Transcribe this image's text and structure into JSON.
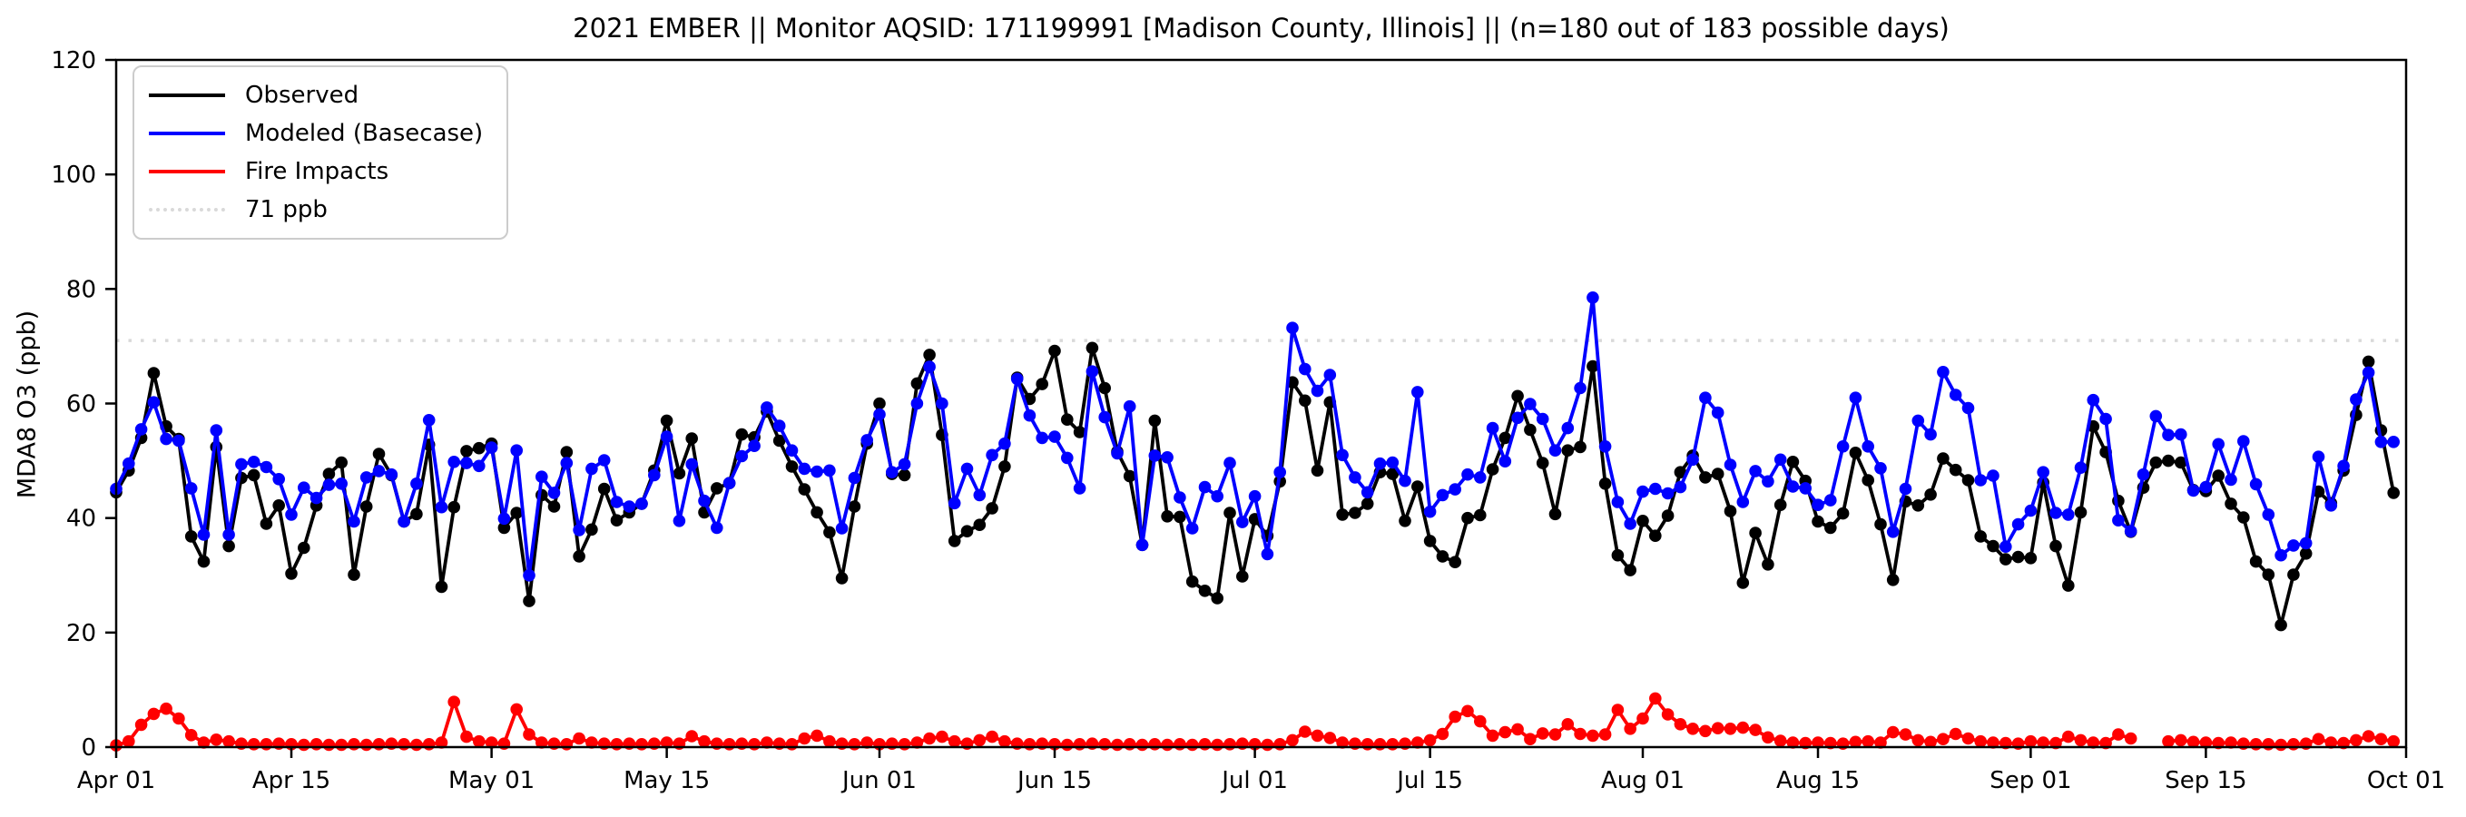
{
  "chart_data": {
    "type": "line",
    "title": "2021 EMBER || Monitor AQSID: 171199991 [Madison County, Illinois] || (n=180 out of 183 possible days)",
    "xlabel": "",
    "ylabel": "MDA8 O3 (ppb)",
    "ylim": [
      0,
      120
    ],
    "yticks": [
      0,
      20,
      40,
      60,
      80,
      100,
      120
    ],
    "n_days": 183,
    "x_start": "Apr 01",
    "x_end": "Oct 01",
    "xtick_labels": [
      "Apr 01",
      "Apr 15",
      "May 01",
      "May 15",
      "Jun 01",
      "Jun 15",
      "Jul 01",
      "Jul 15",
      "Aug 01",
      "Aug 15",
      "Sep 01",
      "Sep 15",
      "Oct 01"
    ],
    "xtick_day_index": [
      0,
      14,
      30,
      44,
      61,
      75,
      91,
      105,
      122,
      136,
      153,
      167,
      183
    ],
    "grid": false,
    "legend_position": "upper-left",
    "background_color": "#ffffff",
    "spine_color": "#000000",
    "reference_line": {
      "label": "71 ppb",
      "value": 71,
      "color": "#d9d9d9",
      "style": "dotted"
    },
    "series": [
      {
        "name": "Observed",
        "color": "#000000",
        "marker": "circle",
        "values": [
          44.5,
          48.3,
          54.0,
          65.3,
          56.0,
          53.8,
          36.8,
          32.4,
          52.4,
          35.1,
          47.0,
          47.5,
          39.0,
          42.2,
          30.3,
          34.8,
          42.2,
          47.7,
          49.7,
          30.1,
          42.0,
          51.2,
          47.5,
          39.4,
          40.7,
          52.8,
          28.0,
          41.9,
          51.7,
          52.2,
          53.0,
          38.3,
          40.9,
          25.5,
          44.0,
          42.0,
          51.5,
          33.3,
          38.0,
          45.1,
          39.6,
          41.0,
          42.5,
          48.3,
          57.0,
          47.8,
          53.9,
          41.0,
          45.2,
          46.1,
          54.6,
          54.1,
          58.6,
          53.5,
          49.0,
          45.0,
          41.0,
          37.5,
          29.5,
          42.0,
          53.0,
          60.0,
          47.7,
          47.5,
          63.5,
          68.5,
          54.5,
          36.0,
          37.7,
          38.8,
          41.7,
          49.0,
          64.5,
          60.8,
          63.4,
          69.2,
          57.2,
          55.0,
          69.7,
          62.7,
          51.6,
          47.3,
          35.3,
          57.0,
          40.3,
          40.2,
          28.9,
          27.3,
          26.0,
          40.9,
          29.8,
          39.8,
          36.9,
          46.4,
          63.7,
          60.5,
          48.3,
          60.2,
          40.6,
          40.9,
          42.5,
          48.0,
          47.7,
          39.5,
          45.5,
          36.0,
          33.3,
          32.3,
          40.0,
          40.5,
          48.5,
          54.0,
          61.3,
          55.4,
          49.6,
          40.7,
          51.8,
          52.4,
          66.5,
          46.0,
          33.5,
          30.9,
          39.5,
          36.9,
          40.4,
          48.0,
          50.9,
          47.1,
          47.7,
          41.2,
          28.7,
          37.4,
          31.9,
          42.3,
          49.8,
          46.5,
          39.4,
          38.3,
          40.8,
          51.4,
          46.6,
          38.9,
          29.2,
          42.9,
          42.2,
          44.1,
          50.4,
          48.4,
          46.6,
          36.8,
          35.1,
          32.8,
          33.2,
          33.0,
          46.2,
          35.1,
          28.2,
          41.0,
          56.0,
          51.5,
          43.0,
          37.6,
          45.3,
          49.7,
          50.0,
          49.7,
          44.9,
          44.7,
          47.4,
          42.5,
          40.1,
          32.4,
          30.1,
          21.3,
          30.1,
          33.8,
          44.6,
          42.6,
          48.3,
          58.0,
          67.3,
          55.3,
          44.4
        ]
      },
      {
        "name": "Modeled (Basecase)",
        "color": "#0000ff",
        "marker": "circle",
        "values": [
          45.1,
          49.5,
          55.5,
          60.2,
          53.8,
          53.5,
          45.2,
          37.1,
          55.3,
          37.1,
          49.4,
          49.8,
          48.9,
          46.8,
          40.6,
          45.3,
          43.5,
          45.8,
          46.0,
          39.4,
          47.1,
          48.2,
          47.6,
          39.4,
          46.0,
          57.1,
          41.9,
          49.8,
          49.6,
          49.1,
          52.3,
          39.9,
          51.8,
          30.0,
          47.2,
          44.4,
          49.6,
          37.9,
          48.6,
          50.1,
          42.8,
          42.0,
          42.5,
          47.5,
          54.2,
          39.5,
          49.4,
          43.0,
          38.3,
          46.1,
          50.8,
          52.6,
          59.3,
          56.1,
          51.8,
          48.6,
          48.1,
          48.3,
          38.2,
          47.0,
          53.6,
          58.1,
          48.0,
          49.4,
          60.0,
          66.4,
          60.0,
          42.6,
          48.6,
          44.0,
          51.0,
          53.0,
          64.3,
          57.9,
          54.0,
          54.2,
          50.5,
          45.2,
          65.6,
          57.6,
          51.3,
          59.5,
          35.3,
          50.9,
          50.6,
          43.6,
          38.2,
          45.4,
          43.8,
          49.6,
          39.3,
          43.8,
          33.7,
          48.0,
          73.2,
          66.0,
          62.2,
          65.0,
          51.0,
          47.1,
          44.5,
          49.5,
          49.7,
          46.5,
          62.0,
          41.1,
          44.0,
          45.0,
          47.6,
          47.1,
          55.7,
          49.9,
          57.5,
          59.9,
          57.3,
          51.8,
          55.7,
          62.7,
          78.5,
          52.5,
          42.8,
          39.0,
          44.6,
          45.1,
          44.3,
          45.4,
          50.2,
          61.0,
          58.4,
          49.3,
          42.8,
          48.2,
          46.4,
          50.2,
          45.5,
          45.2,
          42.3,
          43.1,
          52.5,
          61.0,
          52.5,
          48.7,
          37.6,
          45.1,
          57.0,
          54.6,
          65.5,
          61.5,
          59.2,
          46.6,
          47.4,
          35.0,
          38.9,
          41.3,
          48.0,
          40.9,
          40.6,
          48.8,
          60.6,
          57.3,
          39.6,
          37.7,
          47.6,
          57.8,
          54.5,
          54.6,
          44.8,
          45.4,
          52.9,
          46.7,
          53.4,
          45.9,
          40.6,
          33.5,
          35.2,
          35.6,
          50.7,
          42.2,
          49.1,
          60.7,
          65.4,
          53.3,
          53.3
        ]
      },
      {
        "name": "Fire Impacts",
        "color": "#ff0000",
        "marker": "circle",
        "values": [
          0.3,
          1.0,
          3.9,
          5.8,
          6.7,
          5.0,
          2.1,
          0.8,
          1.3,
          1.0,
          0.6,
          0.5,
          0.5,
          0.6,
          0.5,
          0.4,
          0.5,
          0.4,
          0.4,
          0.5,
          0.4,
          0.5,
          0.6,
          0.5,
          0.4,
          0.5,
          0.8,
          7.9,
          1.8,
          1.0,
          0.8,
          0.6,
          6.6,
          2.2,
          0.8,
          0.6,
          0.5,
          1.5,
          0.8,
          0.6,
          0.5,
          0.6,
          0.5,
          0.6,
          0.8,
          0.6,
          1.9,
          1.0,
          0.6,
          0.5,
          0.6,
          0.5,
          0.8,
          0.6,
          0.5,
          1.5,
          2.0,
          1.0,
          0.6,
          0.5,
          0.8,
          0.5,
          0.6,
          0.5,
          0.8,
          1.5,
          1.8,
          1.0,
          0.6,
          1.2,
          1.8,
          1.0,
          0.6,
          0.5,
          0.6,
          0.5,
          0.4,
          0.5,
          0.6,
          0.5,
          0.4,
          0.5,
          0.4,
          0.5,
          0.4,
          0.5,
          0.4,
          0.5,
          0.4,
          0.5,
          0.6,
          0.5,
          0.4,
          0.5,
          1.2,
          2.7,
          2.0,
          1.6,
          0.8,
          0.6,
          0.5,
          0.5,
          0.5,
          0.6,
          0.8,
          1.2,
          2.3,
          5.3,
          6.3,
          4.5,
          2.0,
          2.6,
          3.1,
          1.4,
          2.4,
          2.2,
          4.0,
          2.3,
          2.0,
          2.2,
          6.5,
          3.2,
          5.0,
          8.5,
          5.7,
          4.0,
          3.2,
          2.8,
          3.3,
          3.2,
          3.4,
          3.0,
          1.7,
          1.1,
          0.8,
          0.7,
          0.8,
          0.7,
          0.6,
          0.9,
          1.0,
          0.8,
          2.6,
          2.2,
          1.2,
          0.9,
          1.4,
          2.3,
          1.5,
          1.0,
          0.8,
          0.7,
          0.6,
          1.0,
          0.8,
          0.7,
          1.8,
          1.2,
          0.8,
          0.7,
          2.2,
          1.5,
          null,
          null,
          1.0,
          1.2,
          0.9,
          0.8,
          0.7,
          0.8,
          0.6,
          0.5,
          0.5,
          0.4,
          0.5,
          0.6,
          1.4,
          0.8,
          0.7,
          1.2,
          1.9,
          1.4,
          1.0
        ]
      }
    ]
  }
}
